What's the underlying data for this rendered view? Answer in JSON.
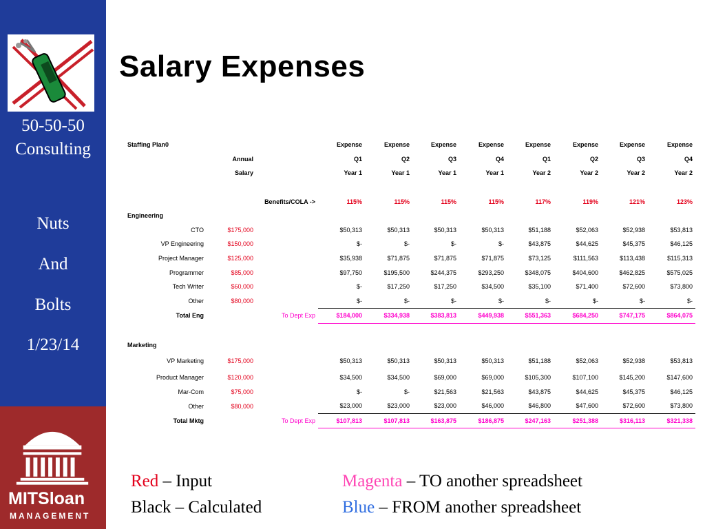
{
  "title": "Salary Expenses",
  "sidebar": {
    "company_line1": "50-50-50",
    "company_line2": "Consulting",
    "topic_line1": "Nuts",
    "topic_line2": "And",
    "topic_line3": "Bolts",
    "date": "1/23/14",
    "logo_text": "MITSloan",
    "logo_sub": "MANAGEMENT"
  },
  "sheet": {
    "header": {
      "plan_label": "Staffing Plan0",
      "annual": "Annual",
      "salary": "Salary",
      "row1": [
        "Expense",
        "Expense",
        "Expense",
        "Expense",
        "Expense",
        "Expense",
        "Expense",
        "Expense"
      ],
      "row2": [
        "Q1",
        "Q2",
        "Q3",
        "Q4",
        "Q1",
        "Q2",
        "Q3",
        "Q4"
      ],
      "row3": [
        "Year 1",
        "Year 1",
        "Year 1",
        "Year 1",
        "Year 2",
        "Year 2",
        "Year 2",
        "Year 2"
      ]
    },
    "benefits": {
      "label": "Benefits/COLA ->",
      "values": [
        "115%",
        "115%",
        "115%",
        "115%",
        "117%",
        "119%",
        "121%",
        "123%"
      ]
    },
    "engineering": {
      "section": "Engineering",
      "rows": [
        {
          "role": "CTO",
          "salary": "$175,000",
          "values": [
            "$50,313",
            "$50,313",
            "$50,313",
            "$50,313",
            "$51,188",
            "$52,063",
            "$52,938",
            "$53,813"
          ]
        },
        {
          "role": "VP Engineering",
          "salary": "$150,000",
          "values": [
            "$-",
            "$-",
            "$-",
            "$-",
            "$43,875",
            "$44,625",
            "$45,375",
            "$46,125"
          ]
        },
        {
          "role": "Project Manager",
          "salary": "$125,000",
          "values": [
            "$35,938",
            "$71,875",
            "$71,875",
            "$71,875",
            "$73,125",
            "$111,563",
            "$113,438",
            "$115,313"
          ]
        },
        {
          "role": "Programmer",
          "salary": "$85,000",
          "values": [
            "$97,750",
            "$195,500",
            "$244,375",
            "$293,250",
            "$348,075",
            "$404,600",
            "$462,825",
            "$575,025"
          ]
        },
        {
          "role": "Tech Writer",
          "salary": "$60,000",
          "values": [
            "$-",
            "$17,250",
            "$17,250",
            "$34,500",
            "$35,100",
            "$71,400",
            "$72,600",
            "$73,800"
          ]
        },
        {
          "role": "Other",
          "salary": "$80,000",
          "values": [
            "$-",
            "$-",
            "$-",
            "$-",
            "$-",
            "$-",
            "$-",
            "$-"
          ]
        }
      ],
      "total": {
        "label": "Total Eng",
        "to_dept": "To Dept Exp",
        "values": [
          "$184,000",
          "$334,938",
          "$383,813",
          "$449,938",
          "$551,363",
          "$684,250",
          "$747,175",
          "$864,075"
        ]
      }
    },
    "marketing": {
      "section": "Marketing",
      "rows": [
        {
          "role": "VP Marketing",
          "salary": "$175,000",
          "values": [
            "$50,313",
            "$50,313",
            "$50,313",
            "$50,313",
            "$51,188",
            "$52,063",
            "$52,938",
            "$53,813"
          ]
        },
        {
          "role": "Product Manager",
          "salary": "$120,000",
          "values": [
            "$34,500",
            "$34,500",
            "$69,000",
            "$69,000",
            "$105,300",
            "$107,100",
            "$145,200",
            "$147,600"
          ]
        },
        {
          "role": "Mar-Com",
          "salary": "$75,000",
          "values": [
            "$-",
            "$-",
            "$21,563",
            "$21,563",
            "$43,875",
            "$44,625",
            "$45,375",
            "$46,125"
          ]
        },
        {
          "role": "Other",
          "salary": "$80,000",
          "values": [
            "$23,000",
            "$23,000",
            "$23,000",
            "$46,000",
            "$46,800",
            "$47,600",
            "$72,600",
            "$73,800"
          ]
        }
      ],
      "total": {
        "label": "Total Mktg",
        "to_dept": "To Dept Exp",
        "values": [
          "$107,813",
          "$107,813",
          "$163,875",
          "$186,875",
          "$247,163",
          "$251,388",
          "$316,113",
          "$321,338"
        ]
      }
    }
  },
  "legend": {
    "red_word": "Red",
    "red_text": " – Input",
    "black_text": "Black – Calculated",
    "magenta_word": "Magenta",
    "magenta_text": " – TO another spreadsheet",
    "blue_word": "Blue",
    "blue_text": " – FROM another spreadsheet"
  },
  "colors": {
    "sidebar": "#1f3c9a",
    "mit_red": "#9e2a2b",
    "input_red": "#e3001b",
    "magenta": "#ff00cc",
    "blue": "#2f6de0"
  }
}
